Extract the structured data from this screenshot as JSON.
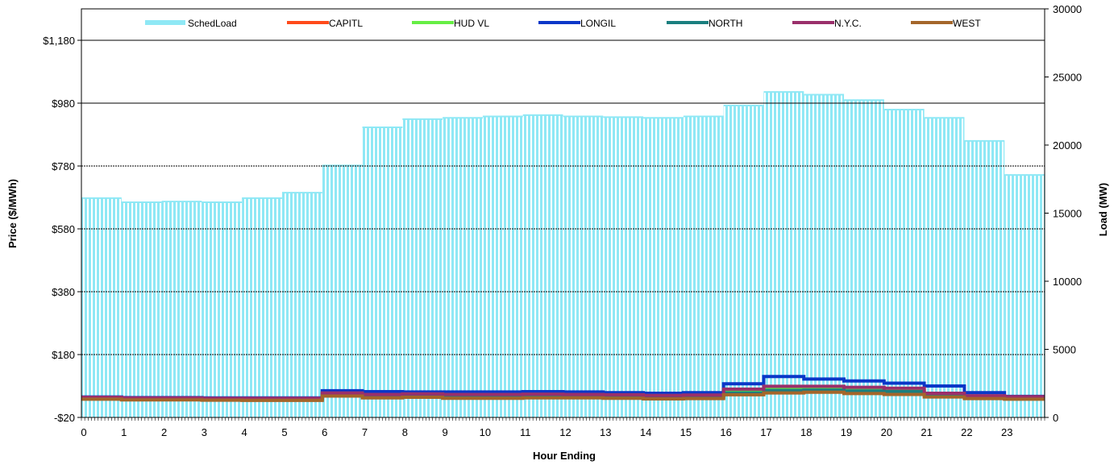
{
  "chart_data": {
    "type": "line",
    "title": "",
    "xlabel": "Hour Ending",
    "ylabel_left": "Price ($/MWh)",
    "ylabel_right": "Load (MW)",
    "x_ticks": [
      "0",
      "1",
      "2",
      "3",
      "4",
      "5",
      "6",
      "7",
      "8",
      "9",
      "10",
      "11",
      "12",
      "13",
      "14",
      "15",
      "16",
      "17",
      "18",
      "19",
      "20",
      "21",
      "22",
      "23"
    ],
    "x_range": [
      0,
      24
    ],
    "y_left": {
      "range": [
        -20,
        1280
      ],
      "ticks": [
        -20,
        180,
        380,
        580,
        780,
        980,
        1180
      ],
      "tick_labels": [
        "-$20",
        "$180",
        "$380",
        "$580",
        "$780",
        "$980",
        "$1,180"
      ]
    },
    "y_right": {
      "range": [
        0,
        30000
      ],
      "ticks": [
        0,
        5000,
        10000,
        15000,
        20000,
        25000,
        30000
      ],
      "tick_labels": [
        "0",
        "5000",
        "10000",
        "15000",
        "20000",
        "25000",
        "30000"
      ]
    },
    "grid": true,
    "legend_position": "top",
    "load_series": {
      "name": "SchedLoad",
      "color": "#8fe8f5",
      "axis": "right",
      "hour_start": [
        0,
        1,
        2,
        3,
        4,
        5,
        6,
        7,
        8,
        9,
        10,
        11,
        12,
        13,
        14,
        15,
        16,
        17,
        18,
        19,
        20,
        21,
        22,
        23
      ],
      "values": [
        16100,
        15800,
        15850,
        15800,
        16100,
        16500,
        18500,
        21300,
        21900,
        22000,
        22100,
        22200,
        22100,
        22050,
        22000,
        22100,
        22900,
        23900,
        23700,
        23300,
        22600,
        22000,
        20300,
        17800
      ]
    },
    "series": [
      {
        "name": "CAPITL",
        "color": "#ff4a1a",
        "axis": "left",
        "values": [
          43,
          41,
          41,
          40,
          40,
          40,
          56,
          51,
          52,
          50,
          50,
          51,
          51,
          50,
          48,
          49,
          64,
          73,
          74,
          71,
          69,
          55,
          47,
          44
        ]
      },
      {
        "name": "HUD VL",
        "color": "#66ee44",
        "axis": "left",
        "values": [
          42,
          40,
          40,
          39,
          39,
          39,
          54,
          49,
          50,
          48,
          48,
          49,
          49,
          48,
          46,
          47,
          62,
          71,
          72,
          69,
          67,
          53,
          45,
          42
        ]
      },
      {
        "name": "LONGIL",
        "color": "#0a37c8",
        "axis": "left",
        "values": [
          45,
          43,
          43,
          42,
          42,
          42,
          65,
          62,
          61,
          61,
          61,
          62,
          61,
          59,
          57,
          59,
          87,
          110,
          102,
          96,
          89,
          80,
          59,
          47
        ]
      },
      {
        "name": "NORTH",
        "color": "#1a7f7f",
        "axis": "left",
        "values": [
          40,
          38,
          38,
          37,
          37,
          37,
          52,
          46,
          47,
          45,
          45,
          44,
          44,
          44,
          42,
          43,
          58,
          66,
          67,
          64,
          62,
          50,
          43,
          40
        ]
      },
      {
        "name": "N.Y.C.",
        "color": "#9a2f6b",
        "axis": "left",
        "values": [
          44,
          42,
          42,
          41,
          41,
          41,
          58,
          53,
          55,
          53,
          53,
          54,
          53,
          52,
          50,
          51,
          70,
          79,
          79,
          76,
          73,
          57,
          49,
          46
        ]
      },
      {
        "name": "WEST",
        "color": "#a4662a",
        "axis": "left",
        "values": [
          38,
          36,
          36,
          35,
          34,
          34,
          48,
          42,
          44,
          41,
          41,
          42,
          42,
          41,
          39,
          40,
          52,
          58,
          60,
          56,
          53,
          45,
          40,
          38
        ]
      }
    ]
  }
}
